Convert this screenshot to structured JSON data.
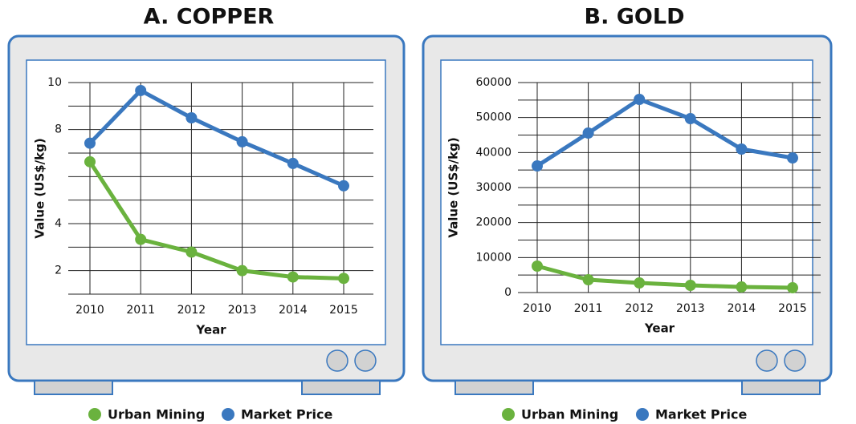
{
  "chart_data": [
    {
      "type": "line",
      "title": "A. COPPER",
      "x_label": "Year",
      "y_label": "Value (US$/kg)",
      "categories": [
        "2010",
        "2011",
        "2012",
        "2013",
        "2014",
        "2015"
      ],
      "series": [
        {
          "name": "Urban Mining",
          "color": "#6ab23e",
          "values": [
            6.63,
            3.33,
            2.79,
            2.0,
            1.73,
            1.67
          ]
        },
        {
          "name": "Market Price",
          "color": "#3a78bf",
          "values": [
            7.42,
            9.66,
            8.5,
            7.48,
            6.56,
            5.61
          ]
        }
      ],
      "ylim": [
        1,
        10
      ],
      "yticks": [
        2,
        4,
        8,
        10
      ],
      "grid_yticks": [
        1,
        2,
        3,
        4,
        5,
        6,
        7,
        8,
        9,
        10
      ],
      "grid": true
    },
    {
      "type": "line",
      "title": "B. GOLD",
      "x_label": "Year",
      "y_label": "Value (US$/kg)",
      "categories": [
        "2010",
        "2011",
        "2012",
        "2013",
        "2014",
        "2015"
      ],
      "series": [
        {
          "name": "Urban Mining",
          "color": "#6ab23e",
          "values": [
            7560,
            3660,
            2750,
            2060,
            1600,
            1370
          ]
        },
        {
          "name": "Market Price",
          "color": "#3a78bf",
          "values": [
            36180,
            45570,
            55190,
            49690,
            40990,
            38470
          ]
        }
      ],
      "ylim": [
        0,
        60000
      ],
      "yticks": [
        0,
        10000,
        20000,
        30000,
        40000,
        50000,
        60000
      ],
      "grid_yticks": [
        0,
        5000,
        10000,
        15000,
        20000,
        25000,
        30000,
        35000,
        40000,
        45000,
        50000,
        55000,
        60000
      ],
      "grid": true
    }
  ]
}
